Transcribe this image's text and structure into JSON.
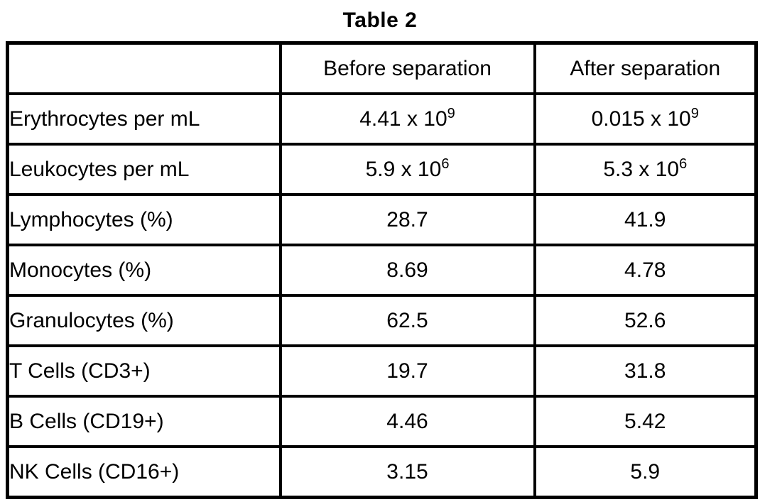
{
  "title": "Table 2",
  "table": {
    "headers": [
      "",
      "Before separation",
      "After separation"
    ],
    "rows": [
      {
        "label": "Erythrocytes per mL",
        "before": "4.41 x 10^9",
        "after": "0.015 x 10^9"
      },
      {
        "label": "Leukocytes per mL",
        "before": "5.9 x 10^6",
        "after": "5.3 x 10^6"
      },
      {
        "label": "Lymphocytes (%)",
        "before": "28.7",
        "after": "41.9"
      },
      {
        "label": "Monocytes (%)",
        "before": "8.69",
        "after": "4.78"
      },
      {
        "label": "Granulocytes (%)",
        "before": "62.5",
        "after": "52.6"
      },
      {
        "label": "T Cells (CD3+)",
        "before": "19.7",
        "after": "31.8"
      },
      {
        "label": "B Cells (CD19+)",
        "before": "4.46",
        "after": "5.42"
      },
      {
        "label": "NK Cells (CD16+)",
        "before": "3.15",
        "after": "5.9"
      }
    ]
  },
  "chart_data": {
    "type": "table",
    "title": "Table 2",
    "categories": [
      "Erythrocytes per mL",
      "Leukocytes per mL",
      "Lymphocytes (%)",
      "Monocytes (%)",
      "Granulocytes (%)",
      "T Cells (CD3+)",
      "B Cells (CD19+)",
      "NK Cells (CD16+)"
    ],
    "series": [
      {
        "name": "Before separation",
        "values": [
          4410000000,
          5900000,
          28.7,
          8.69,
          62.5,
          19.7,
          4.46,
          3.15
        ]
      },
      {
        "name": "After separation",
        "values": [
          15000000,
          5300000,
          41.9,
          4.78,
          52.6,
          31.8,
          5.42,
          5.9
        ]
      }
    ]
  }
}
